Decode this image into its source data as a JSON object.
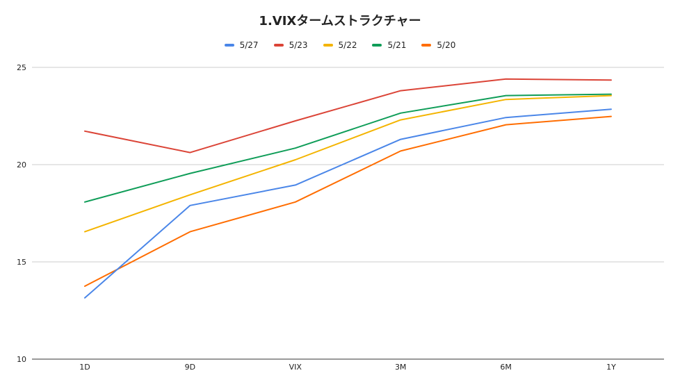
{
  "chart_data": {
    "type": "line",
    "title": "1.VIXタームストラクチャー",
    "xlabel": "",
    "ylabel": "",
    "categories": [
      "1D",
      "9D",
      "VIX",
      "3M",
      "6M",
      "1Y"
    ],
    "ylim": [
      10,
      25
    ],
    "yticks": [
      "10",
      "15",
      "20",
      "25"
    ],
    "grid": true,
    "legend_position": "top-center",
    "series": [
      {
        "name": "5/27",
        "color": "#4a86e8",
        "values": [
          13.15,
          17.9,
          18.95,
          21.3,
          22.42,
          22.85
        ]
      },
      {
        "name": "5/23",
        "color": "#db4437",
        "values": [
          21.72,
          20.62,
          22.25,
          23.8,
          24.4,
          24.35
        ]
      },
      {
        "name": "5/22",
        "color": "#f4b400",
        "values": [
          16.55,
          18.45,
          20.25,
          22.3,
          23.35,
          23.55
        ]
      },
      {
        "name": "5/21",
        "color": "#0f9d58",
        "values": [
          18.08,
          19.55,
          20.85,
          22.65,
          23.55,
          23.62
        ]
      },
      {
        "name": "5/20",
        "color": "#ff6d01",
        "values": [
          13.75,
          16.55,
          18.08,
          20.7,
          22.05,
          22.48
        ]
      }
    ]
  }
}
